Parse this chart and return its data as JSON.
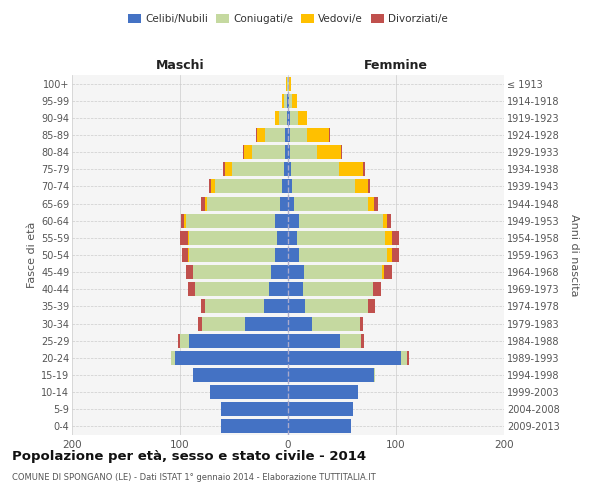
{
  "age_groups": [
    "0-4",
    "5-9",
    "10-14",
    "15-19",
    "20-24",
    "25-29",
    "30-34",
    "35-39",
    "40-44",
    "45-49",
    "50-54",
    "55-59",
    "60-64",
    "65-69",
    "70-74",
    "75-79",
    "80-84",
    "85-89",
    "90-94",
    "95-99",
    "100+"
  ],
  "birth_years": [
    "2009-2013",
    "2004-2008",
    "1999-2003",
    "1994-1998",
    "1989-1993",
    "1984-1988",
    "1979-1983",
    "1974-1978",
    "1969-1973",
    "1964-1968",
    "1959-1963",
    "1954-1958",
    "1949-1953",
    "1944-1948",
    "1939-1943",
    "1934-1938",
    "1929-1933",
    "1924-1928",
    "1919-1923",
    "1914-1918",
    "≤ 1913"
  ],
  "maschi": {
    "celibi": [
      62,
      62,
      72,
      88,
      105,
      92,
      40,
      22,
      18,
      16,
      12,
      10,
      12,
      7,
      6,
      4,
      3,
      3,
      1,
      1,
      0
    ],
    "coniugati": [
      0,
      0,
      0,
      0,
      3,
      8,
      40,
      55,
      68,
      72,
      80,
      82,
      82,
      68,
      62,
      48,
      30,
      18,
      7,
      3,
      1
    ],
    "vedovi": [
      0,
      0,
      0,
      0,
      0,
      0,
      0,
      0,
      0,
      0,
      1,
      1,
      2,
      2,
      3,
      6,
      8,
      8,
      4,
      2,
      1
    ],
    "divorziati": [
      0,
      0,
      0,
      0,
      0,
      2,
      3,
      4,
      7,
      6,
      5,
      7,
      3,
      4,
      2,
      2,
      1,
      1,
      0,
      0,
      0
    ]
  },
  "femmine": {
    "nubili": [
      58,
      60,
      65,
      80,
      105,
      48,
      22,
      16,
      14,
      15,
      10,
      8,
      10,
      6,
      4,
      3,
      2,
      2,
      2,
      1,
      0
    ],
    "coniugate": [
      0,
      0,
      0,
      1,
      5,
      20,
      45,
      58,
      65,
      72,
      82,
      82,
      78,
      68,
      58,
      44,
      25,
      16,
      7,
      3,
      1
    ],
    "vedove": [
      0,
      0,
      0,
      0,
      0,
      0,
      0,
      0,
      0,
      2,
      4,
      6,
      4,
      6,
      12,
      22,
      22,
      20,
      9,
      4,
      2
    ],
    "divorziate": [
      0,
      0,
      0,
      0,
      2,
      2,
      2,
      7,
      7,
      7,
      7,
      7,
      3,
      3,
      2,
      2,
      1,
      1,
      0,
      0,
      0
    ]
  },
  "colors": {
    "celibi": "#4472c4",
    "coniugati": "#c5d9a0",
    "vedovi": "#ffc000",
    "divorziati": "#c0504d"
  },
  "xlim": 200,
  "title": "Popolazione per età, sesso e stato civile - 2014",
  "subtitle": "COMUNE DI SPONGANO (LE) - Dati ISTAT 1° gennaio 2014 - Elaborazione TUTTITALIA.IT",
  "ylabel_left": "Fasce di età",
  "ylabel_right": "Anni di nascita",
  "xlabel_left": "Maschi",
  "xlabel_right": "Femmine",
  "bg_color": "#f5f5f5"
}
